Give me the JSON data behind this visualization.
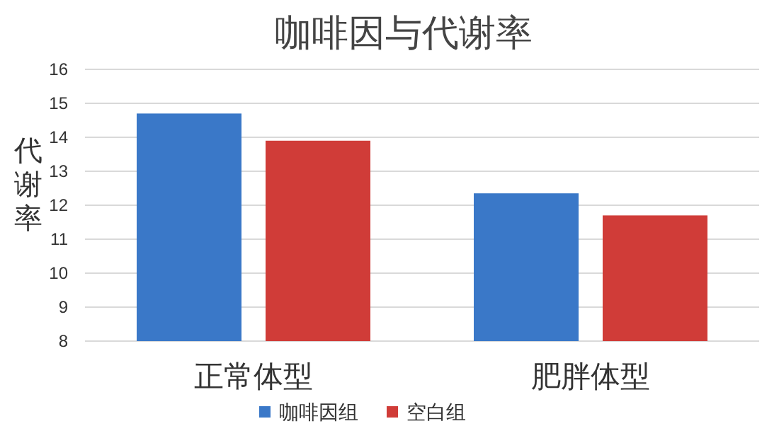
{
  "chart_data": {
    "type": "bar",
    "title": "咖啡因与代谢率",
    "ylabel": "代谢率",
    "categories": [
      "正常体型",
      "肥胖体型"
    ],
    "series": [
      {
        "name": "咖啡因组",
        "color": "#3a78c8",
        "values": [
          14.7,
          12.35
        ]
      },
      {
        "name": "空白组",
        "color": "#d03c38",
        "values": [
          13.9,
          11.7
        ]
      }
    ],
    "ylim": [
      8,
      16
    ],
    "yticks": [
      8,
      9,
      10,
      11,
      12,
      13,
      14,
      15,
      16
    ],
    "grid": "y",
    "legend": "bottom"
  }
}
